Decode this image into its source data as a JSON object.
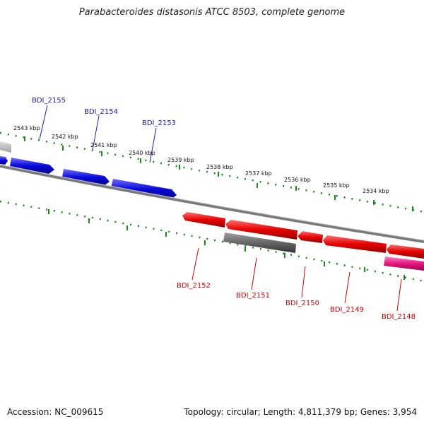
{
  "title": "Parabacteroides distasonis ATCC 8503, complete genome",
  "footer": {
    "accession": "Accession: NC_009615",
    "summary": "Topology: circular; Length: 4,811,379 bp; Genes: 3,954"
  },
  "colors": {
    "forward_gene": "#0a0adc",
    "reverse_gene": "#e60000",
    "other_gene_gray": "#666666",
    "other_gene_pink": "#e8157f",
    "tick": "#1a8a1a",
    "backbone": "#7a7a7a",
    "forward_label": "#1a1aaa",
    "reverse_label": "#cc0000"
  },
  "kbp_labels": [
    "2543 kbp",
    "2542 kbp",
    "2541 kbp",
    "2540 kbp",
    "2539 kbp",
    "2538 kbp",
    "2537 kbp",
    "2536 kbp",
    "2535 kbp",
    "2534 kbp"
  ],
  "forward_genes": [
    "BDI_2155",
    "BDI_2154",
    "BDI_2153"
  ],
  "reverse_genes": [
    "BDI_2152",
    "BDI_2151",
    "BDI_2150",
    "BDI_2149",
    "BDI_2148"
  ]
}
